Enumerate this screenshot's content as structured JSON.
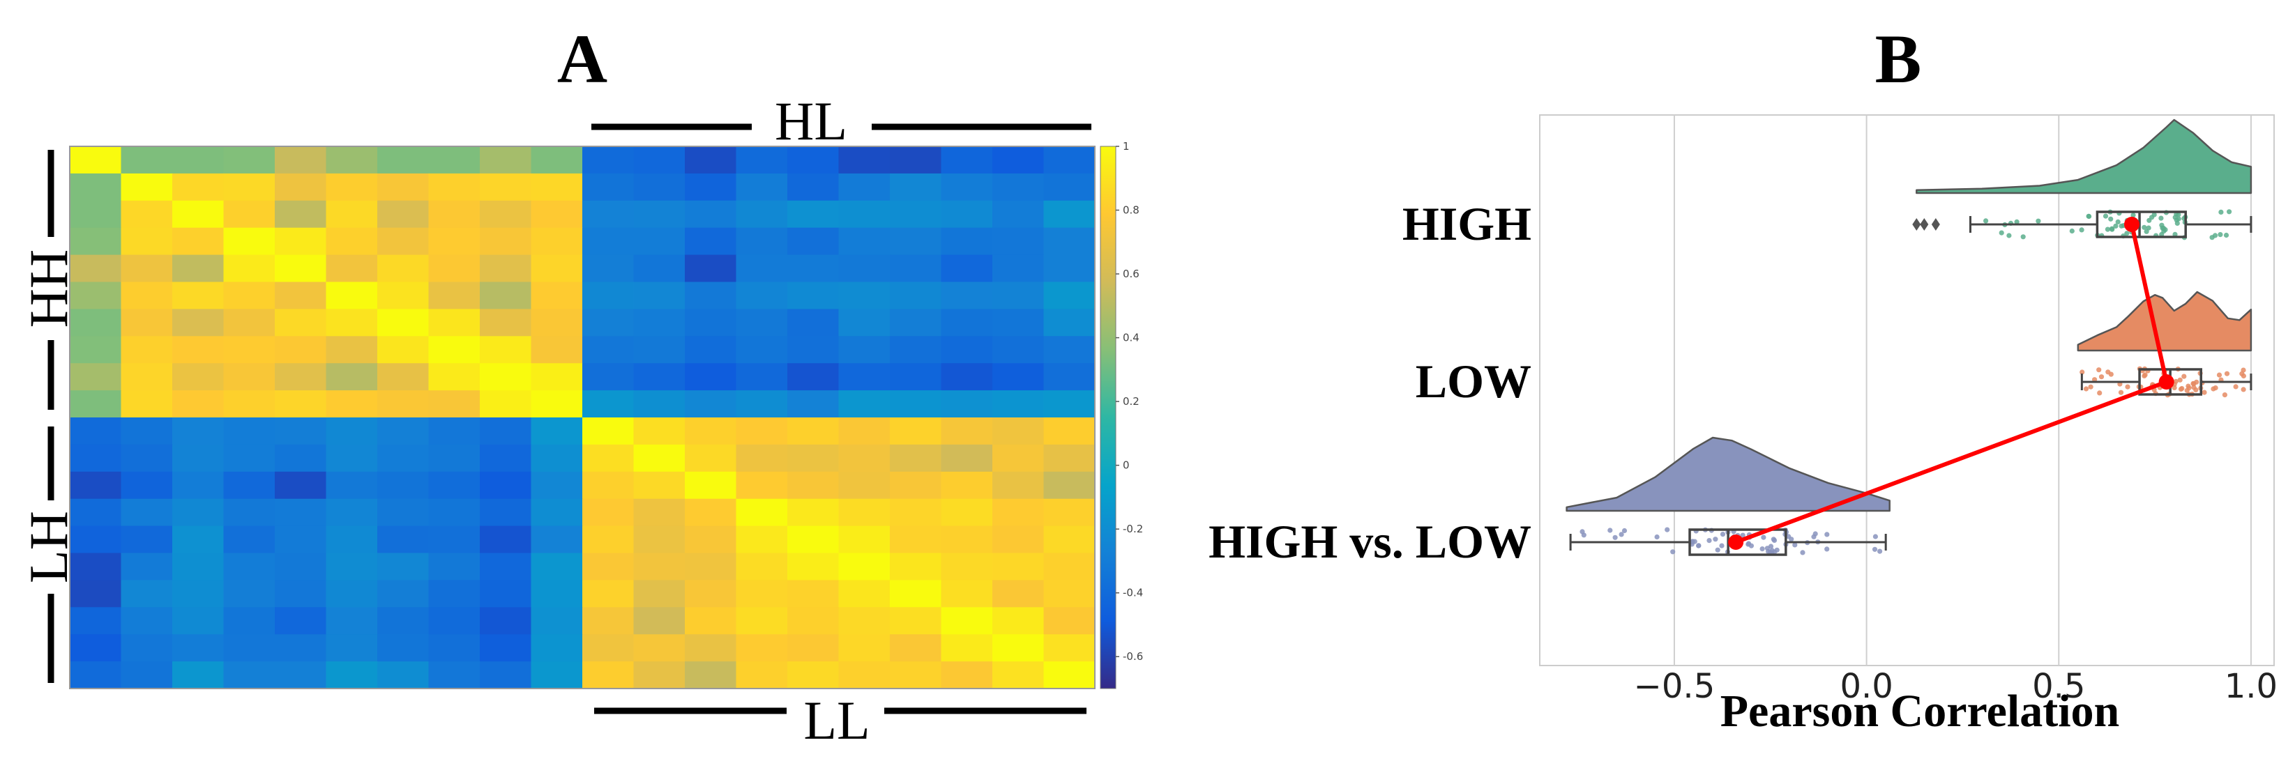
{
  "panels": {
    "a_label": "A",
    "b_label": "B"
  },
  "chart_data": [
    {
      "type": "heatmap",
      "panel": "A",
      "title": "",
      "rows": 20,
      "cols": 20,
      "group_labels": {
        "top": "HL",
        "bottom": "LL",
        "left_upper": "HH",
        "left_lower": "LH"
      },
      "colorbar": {
        "range": [
          -0.7,
          1.0
        ],
        "ticks": [
          1,
          0.8,
          0.6,
          0.4,
          0.2,
          0,
          -0.2,
          -0.4,
          -0.6
        ],
        "tick_labels": [
          "1",
          "0.8",
          "0.6",
          "0.4",
          "0.2",
          "0",
          "-0.2",
          "-0.4",
          "-0.6"
        ],
        "colormap": "parula",
        "stops": [
          "#352a87",
          "#0f5cdd",
          "#1481d6",
          "#06a4ca",
          "#2eb7a4",
          "#87bf77",
          "#d1bb59",
          "#fec832",
          "#f9fb0e"
        ]
      },
      "blocks": {
        "within_group_mean": 0.75,
        "between_group_mean": -0.3,
        "diagonal": 1.0
      },
      "values": [
        [
          1.0,
          0.34,
          0.34,
          0.35,
          0.55,
          0.42,
          0.34,
          0.34,
          0.45,
          0.34,
          -0.4,
          -0.42,
          -0.55,
          -0.4,
          -0.45,
          -0.55,
          -0.56,
          -0.43,
          -0.48,
          -0.4
        ],
        [
          0.34,
          1.0,
          0.85,
          0.86,
          0.71,
          0.81,
          0.76,
          0.82,
          0.84,
          0.85,
          -0.35,
          -0.38,
          -0.44,
          -0.3,
          -0.41,
          -0.31,
          -0.24,
          -0.3,
          -0.33,
          -0.35
        ],
        [
          0.34,
          0.85,
          1.0,
          0.82,
          0.53,
          0.86,
          0.62,
          0.78,
          0.7,
          0.79,
          -0.27,
          -0.26,
          -0.3,
          -0.23,
          -0.18,
          -0.19,
          -0.2,
          -0.22,
          -0.3,
          -0.15
        ],
        [
          0.36,
          0.86,
          0.82,
          1.0,
          0.93,
          0.82,
          0.73,
          0.8,
          0.76,
          0.82,
          -0.3,
          -0.3,
          -0.41,
          -0.32,
          -0.37,
          -0.3,
          -0.29,
          -0.34,
          -0.33,
          -0.28
        ],
        [
          0.55,
          0.71,
          0.53,
          0.93,
          1.0,
          0.73,
          0.86,
          0.78,
          0.65,
          0.84,
          -0.29,
          -0.34,
          -0.55,
          -0.31,
          -0.31,
          -0.32,
          -0.33,
          -0.42,
          -0.33,
          -0.28
        ],
        [
          0.42,
          0.81,
          0.86,
          0.82,
          0.73,
          1.0,
          0.9,
          0.69,
          0.5,
          0.8,
          -0.23,
          -0.24,
          -0.32,
          -0.25,
          -0.22,
          -0.21,
          -0.23,
          -0.27,
          -0.26,
          -0.14
        ],
        [
          0.34,
          0.76,
          0.62,
          0.73,
          0.86,
          0.9,
          1.0,
          0.91,
          0.68,
          0.77,
          -0.28,
          -0.3,
          -0.35,
          -0.32,
          -0.38,
          -0.24,
          -0.29,
          -0.35,
          -0.34,
          -0.2
        ],
        [
          0.35,
          0.82,
          0.79,
          0.8,
          0.78,
          0.69,
          0.91,
          1.0,
          0.93,
          0.76,
          -0.33,
          -0.32,
          -0.39,
          -0.34,
          -0.37,
          -0.32,
          -0.37,
          -0.4,
          -0.37,
          -0.33
        ],
        [
          0.45,
          0.84,
          0.7,
          0.76,
          0.65,
          0.5,
          0.68,
          0.93,
          1.0,
          0.95,
          -0.38,
          -0.42,
          -0.48,
          -0.41,
          -0.52,
          -0.42,
          -0.43,
          -0.51,
          -0.47,
          -0.38
        ],
        [
          0.34,
          0.85,
          0.79,
          0.82,
          0.84,
          0.8,
          0.77,
          0.76,
          0.95,
          1.0,
          -0.15,
          -0.19,
          -0.24,
          -0.2,
          -0.27,
          -0.15,
          -0.16,
          -0.18,
          -0.16,
          -0.14
        ],
        [
          -0.4,
          -0.35,
          -0.27,
          -0.3,
          -0.29,
          -0.23,
          -0.28,
          -0.33,
          -0.38,
          -0.15,
          1.0,
          0.88,
          0.82,
          0.79,
          0.82,
          0.77,
          0.83,
          0.75,
          0.72,
          0.81
        ],
        [
          -0.42,
          -0.38,
          -0.26,
          -0.3,
          -0.34,
          -0.24,
          -0.3,
          -0.32,
          -0.42,
          -0.19,
          0.88,
          1.0,
          0.86,
          0.71,
          0.7,
          0.73,
          0.65,
          0.58,
          0.75,
          0.68
        ],
        [
          -0.55,
          -0.44,
          -0.3,
          -0.41,
          -0.55,
          -0.32,
          -0.35,
          -0.39,
          -0.48,
          -0.24,
          0.82,
          0.86,
          1.0,
          0.8,
          0.76,
          0.72,
          0.76,
          0.81,
          0.69,
          0.55
        ],
        [
          -0.4,
          -0.3,
          -0.23,
          -0.32,
          -0.31,
          -0.25,
          -0.32,
          -0.34,
          -0.41,
          -0.2,
          0.79,
          0.71,
          0.8,
          1.0,
          0.92,
          0.87,
          0.84,
          0.87,
          0.8,
          0.82
        ],
        [
          -0.45,
          -0.41,
          -0.18,
          -0.37,
          -0.31,
          -0.22,
          -0.38,
          -0.37,
          -0.52,
          -0.27,
          0.82,
          0.7,
          0.76,
          0.92,
          1.0,
          0.94,
          0.83,
          0.82,
          0.78,
          0.86
        ],
        [
          -0.55,
          -0.31,
          -0.19,
          -0.3,
          -0.32,
          -0.21,
          -0.24,
          -0.32,
          -0.42,
          -0.15,
          0.77,
          0.73,
          0.72,
          0.87,
          0.94,
          1.0,
          0.91,
          0.86,
          0.85,
          0.82
        ],
        [
          -0.56,
          -0.24,
          -0.2,
          -0.29,
          -0.33,
          -0.23,
          -0.29,
          -0.37,
          -0.43,
          -0.16,
          0.83,
          0.65,
          0.76,
          0.84,
          0.83,
          0.91,
          1.0,
          0.88,
          0.77,
          0.83
        ],
        [
          -0.43,
          -0.3,
          -0.22,
          -0.34,
          -0.42,
          -0.27,
          -0.35,
          -0.4,
          -0.51,
          -0.18,
          0.75,
          0.58,
          0.81,
          0.87,
          0.82,
          0.86,
          0.88,
          1.0,
          0.93,
          0.78
        ],
        [
          -0.48,
          -0.33,
          -0.3,
          -0.33,
          -0.33,
          -0.26,
          -0.34,
          -0.37,
          -0.47,
          -0.16,
          0.72,
          0.75,
          0.69,
          0.8,
          0.78,
          0.85,
          0.77,
          0.93,
          1.0,
          0.89
        ],
        [
          -0.4,
          -0.35,
          -0.15,
          -0.28,
          -0.28,
          -0.14,
          -0.2,
          -0.33,
          -0.38,
          -0.14,
          0.81,
          0.68,
          0.55,
          0.82,
          0.86,
          0.82,
          0.83,
          0.78,
          0.89,
          1.0
        ]
      ]
    },
    {
      "type": "raincloud",
      "panel": "B",
      "title": "",
      "xlabel": "Pearson Correlation",
      "ylabel": "",
      "xlim": [
        -0.85,
        1.06
      ],
      "xticks": [
        -0.5,
        0.0,
        0.5,
        1.0
      ],
      "xtick_labels": [
        "−0.5",
        "0.0",
        "0.5",
        "1.0"
      ],
      "grid": true,
      "categories": [
        "HIGH",
        "LOW",
        "HIGH vs. LOW"
      ],
      "series": [
        {
          "name": "HIGH",
          "color": "#5aae8c",
          "box": {
            "whisker_low": 0.27,
            "q1": 0.6,
            "median": 0.71,
            "q3": 0.83,
            "whisker_high": 1.0
          },
          "outliers": [
            0.13,
            0.15,
            0.18
          ],
          "mean": 0.69,
          "density_range": [
            0.13,
            1.0
          ],
          "density_shape": [
            [
              0.13,
              0.04
            ],
            [
              0.3,
              0.06
            ],
            [
              0.45,
              0.1
            ],
            [
              0.55,
              0.18
            ],
            [
              0.65,
              0.38
            ],
            [
              0.72,
              0.62
            ],
            [
              0.78,
              0.9
            ],
            [
              0.8,
              1.0
            ],
            [
              0.85,
              0.82
            ],
            [
              0.9,
              0.58
            ],
            [
              0.95,
              0.42
            ],
            [
              1.0,
              0.36
            ]
          ]
        },
        {
          "name": "LOW",
          "color": "#e58b63",
          "box": {
            "whisker_low": 0.56,
            "q1": 0.71,
            "median": 0.79,
            "q3": 0.87,
            "whisker_high": 1.0
          },
          "outliers": [],
          "mean": 0.78,
          "density_range": [
            0.55,
            1.0
          ],
          "density_shape": [
            [
              0.55,
              0.1
            ],
            [
              0.6,
              0.26
            ],
            [
              0.65,
              0.4
            ],
            [
              0.68,
              0.58
            ],
            [
              0.72,
              0.84
            ],
            [
              0.75,
              0.95
            ],
            [
              0.77,
              0.9
            ],
            [
              0.8,
              0.68
            ],
            [
              0.83,
              0.8
            ],
            [
              0.86,
              1.0
            ],
            [
              0.9,
              0.85
            ],
            [
              0.94,
              0.55
            ],
            [
              0.97,
              0.52
            ],
            [
              1.0,
              0.7
            ]
          ]
        },
        {
          "name": "HIGH vs. LOW",
          "color": "#8893bd",
          "box": {
            "whisker_low": -0.77,
            "q1": -0.46,
            "median": -0.36,
            "q3": -0.21,
            "whisker_high": 0.05
          },
          "outliers": [],
          "mean": -0.34,
          "density_range": [
            -0.78,
            0.06
          ],
          "density_shape": [
            [
              -0.78,
              0.05
            ],
            [
              -0.65,
              0.18
            ],
            [
              -0.55,
              0.46
            ],
            [
              -0.45,
              0.85
            ],
            [
              -0.4,
              1.0
            ],
            [
              -0.35,
              0.96
            ],
            [
              -0.3,
              0.84
            ],
            [
              -0.2,
              0.58
            ],
            [
              -0.1,
              0.38
            ],
            [
              0.0,
              0.24
            ],
            [
              0.06,
              0.14
            ]
          ]
        }
      ],
      "mean_line_color": "#ff0000"
    }
  ]
}
